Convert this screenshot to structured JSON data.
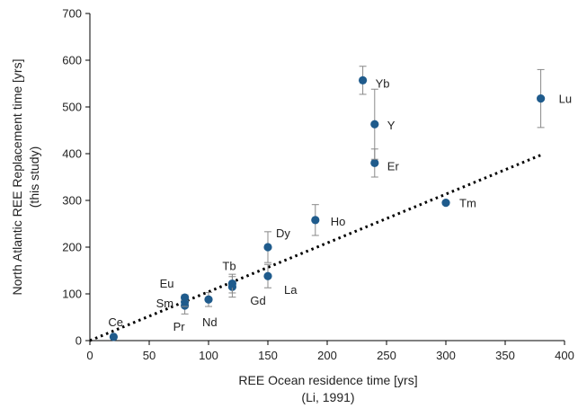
{
  "chart_data": {
    "type": "scatter",
    "xlabel_lines": [
      "REE Ocean residence time [yrs]",
      "(Li, 1991)"
    ],
    "ylabel_lines": [
      "North Atlantic REE Replacement time [yrs]",
      "(this study)"
    ],
    "xlim": [
      0,
      400
    ],
    "ylim": [
      0,
      700
    ],
    "x_ticks": [
      0,
      50,
      100,
      150,
      200,
      250,
      300,
      350,
      400
    ],
    "y_ticks": [
      0,
      100,
      200,
      300,
      400,
      500,
      600,
      700
    ],
    "grid": false,
    "marker_color": "#1f5b8c",
    "errorbar_color": "#888888",
    "trendline": {
      "style": "dotted",
      "color": "#000000",
      "x": [
        0,
        380
      ],
      "y": [
        0,
        397
      ]
    },
    "points": [
      {
        "label": "Ce",
        "x": 20,
        "y": 8,
        "err": 3
      },
      {
        "label": "Pr",
        "x": 80,
        "y": 75,
        "err": 18
      },
      {
        "label": "Sm",
        "x": 80,
        "y": 83,
        "err": 10
      },
      {
        "label": "Eu",
        "x": 80,
        "y": 92,
        "err": 6
      },
      {
        "label": "Nd",
        "x": 100,
        "y": 88,
        "err": 15
      },
      {
        "label": "Gd",
        "x": 120,
        "y": 115,
        "err": 22
      },
      {
        "label": "Tb",
        "x": 120,
        "y": 122,
        "err": 20
      },
      {
        "label": "La",
        "x": 150,
        "y": 138,
        "err": 25
      },
      {
        "label": "Dy",
        "x": 150,
        "y": 200,
        "err": 33
      },
      {
        "label": "Ho",
        "x": 190,
        "y": 258,
        "err": 33
      },
      {
        "label": "Tm",
        "x": 300,
        "y": 295,
        "err": 0
      },
      {
        "label": "Er",
        "x": 240,
        "y": 380,
        "err": 30
      },
      {
        "label": "Y",
        "x": 240,
        "y": 463,
        "err": 75
      },
      {
        "label": "Yb",
        "x": 230,
        "y": 557,
        "err": 30
      },
      {
        "label": "Lu",
        "x": 380,
        "y": 518,
        "err": 62
      }
    ]
  }
}
